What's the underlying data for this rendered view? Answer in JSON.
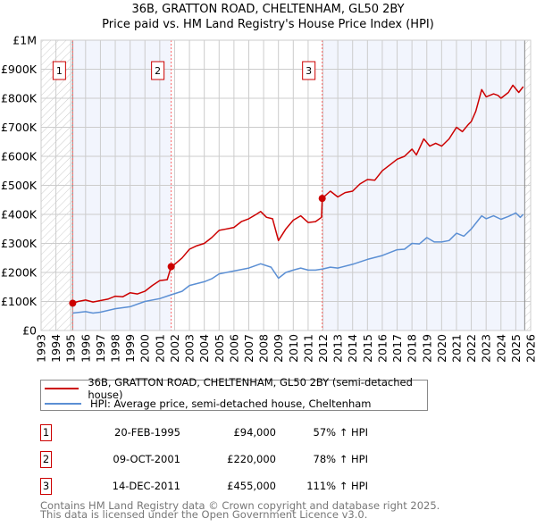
{
  "chart_data": {
    "type": "line",
    "title": "36B, GRATTON ROAD, CHELTENHAM, GL50 2BY",
    "subtitle": "Price paid vs. HM Land Registry's House Price Index (HPI)",
    "xlim": [
      1993,
      2026
    ],
    "ylim": [
      0,
      1000000
    ],
    "x_ticks": [
      1993,
      1994,
      1995,
      1996,
      1997,
      1998,
      1999,
      2000,
      2001,
      2002,
      2003,
      2004,
      2005,
      2006,
      2007,
      2008,
      2009,
      2010,
      2011,
      2012,
      2013,
      2014,
      2015,
      2016,
      2017,
      2018,
      2019,
      2020,
      2021,
      2022,
      2023,
      2024,
      2025,
      2026
    ],
    "y_ticks": [
      {
        "value": 0,
        "label": "£0"
      },
      {
        "value": 100000,
        "label": "£100K"
      },
      {
        "value": 200000,
        "label": "£200K"
      },
      {
        "value": 300000,
        "label": "£300K"
      },
      {
        "value": 400000,
        "label": "£400K"
      },
      {
        "value": 500000,
        "label": "£500K"
      },
      {
        "value": 600000,
        "label": "£600K"
      },
      {
        "value": 700000,
        "label": "£700K"
      },
      {
        "value": 800000,
        "label": "£800K"
      },
      {
        "value": 900000,
        "label": "£900K"
      },
      {
        "value": 1000000,
        "label": "£1M"
      }
    ],
    "grid": true,
    "data_range": [
      1995.13,
      2025.6
    ],
    "series": [
      {
        "name": "36B, GRATTON ROAD, CHELTENHAM, GL50 2BY (semi-detached house)",
        "color": "#cc0000",
        "x": [
          1995.13,
          1995.5,
          1996,
          1996.5,
          1997,
          1997.5,
          1998,
          1998.5,
          1999,
          1999.5,
          2000,
          2000.5,
          2001,
          2001.5,
          2001.77,
          2002,
          2002.5,
          2003,
          2003.5,
          2004,
          2004.5,
          2005,
          2005.5,
          2006,
          2006.5,
          2007,
          2007.5,
          2007.8,
          2008.2,
          2008.6,
          2009,
          2009.5,
          2010,
          2010.5,
          2011,
          2011.5,
          2011.9,
          2011.95,
          2012.5,
          2013,
          2013.5,
          2014,
          2014.5,
          2015,
          2015.5,
          2016,
          2016.5,
          2017,
          2017.5,
          2018,
          2018.3,
          2018.8,
          2019.2,
          2019.6,
          2020,
          2020.5,
          2021,
          2021.4,
          2021.8,
          2022,
          2022.3,
          2022.7,
          2023,
          2023.5,
          2023.8,
          2024,
          2024.5,
          2024.8,
          2025.2,
          2025.5
        ],
        "y": [
          94000,
          100000,
          105000,
          98000,
          103000,
          108000,
          118000,
          116000,
          130000,
          126000,
          135000,
          155000,
          172000,
          175000,
          220000,
          228000,
          250000,
          280000,
          292000,
          300000,
          320000,
          345000,
          350000,
          355000,
          375000,
          385000,
          400000,
          410000,
          390000,
          385000,
          310000,
          350000,
          380000,
          395000,
          372000,
          375000,
          390000,
          455000,
          480000,
          460000,
          475000,
          480000,
          505000,
          520000,
          518000,
          550000,
          570000,
          590000,
          600000,
          625000,
          605000,
          660000,
          635000,
          645000,
          635000,
          660000,
          700000,
          685000,
          710000,
          720000,
          755000,
          830000,
          805000,
          815000,
          810000,
          800000,
          820000,
          845000,
          820000,
          840000
        ]
      },
      {
        "name": "HPI: Average price, semi-detached house, Cheltenham",
        "color": "#5b8fd4",
        "x": [
          1995.13,
          1996,
          1996.5,
          1997,
          1998,
          1999,
          2000,
          2001,
          2001.77,
          2002.5,
          2003,
          2004,
          2004.5,
          2005,
          2006,
          2007,
          2007.8,
          2008.5,
          2009,
          2009.5,
          2010,
          2010.5,
          2011,
          2011.5,
          2012,
          2012.5,
          2013,
          2014,
          2015,
          2016,
          2017,
          2017.5,
          2018,
          2018.5,
          2019,
          2019.5,
          2020,
          2020.5,
          2021,
          2021.5,
          2022,
          2022.7,
          2023,
          2023.5,
          2024,
          2024.5,
          2025,
          2025.3,
          2025.5
        ],
        "y": [
          60000,
          65000,
          60000,
          63000,
          75000,
          82000,
          100000,
          110000,
          123000,
          135000,
          155000,
          168000,
          178000,
          195000,
          205000,
          215000,
          230000,
          218000,
          180000,
          200000,
          208000,
          215000,
          208000,
          208000,
          212000,
          218000,
          215000,
          228000,
          245000,
          258000,
          278000,
          280000,
          300000,
          298000,
          320000,
          305000,
          305000,
          310000,
          335000,
          325000,
          350000,
          395000,
          385000,
          395000,
          383000,
          393000,
          405000,
          390000,
          400000
        ]
      }
    ],
    "sales": [
      {
        "label": "1",
        "x": 1995.13,
        "y": 94000,
        "date": "20-FEB-1995",
        "price": "£94,000",
        "hpi": "57% ↑ HPI"
      },
      {
        "label": "2",
        "x": 2001.77,
        "y": 220000,
        "date": "09-OCT-2001",
        "price": "£220,000",
        "hpi": "78% ↑ HPI"
      },
      {
        "label": "3",
        "x": 2011.95,
        "y": 455000,
        "date": "14-DEC-2011",
        "price": "£455,000",
        "hpi": "111% ↑ HPI"
      }
    ],
    "legend_position": "below"
  },
  "footer": {
    "line1": "Contains HM Land Registry data © Crown copyright and database right 2025.",
    "line2": "This data is licensed under the Open Government Licence v3.0."
  }
}
